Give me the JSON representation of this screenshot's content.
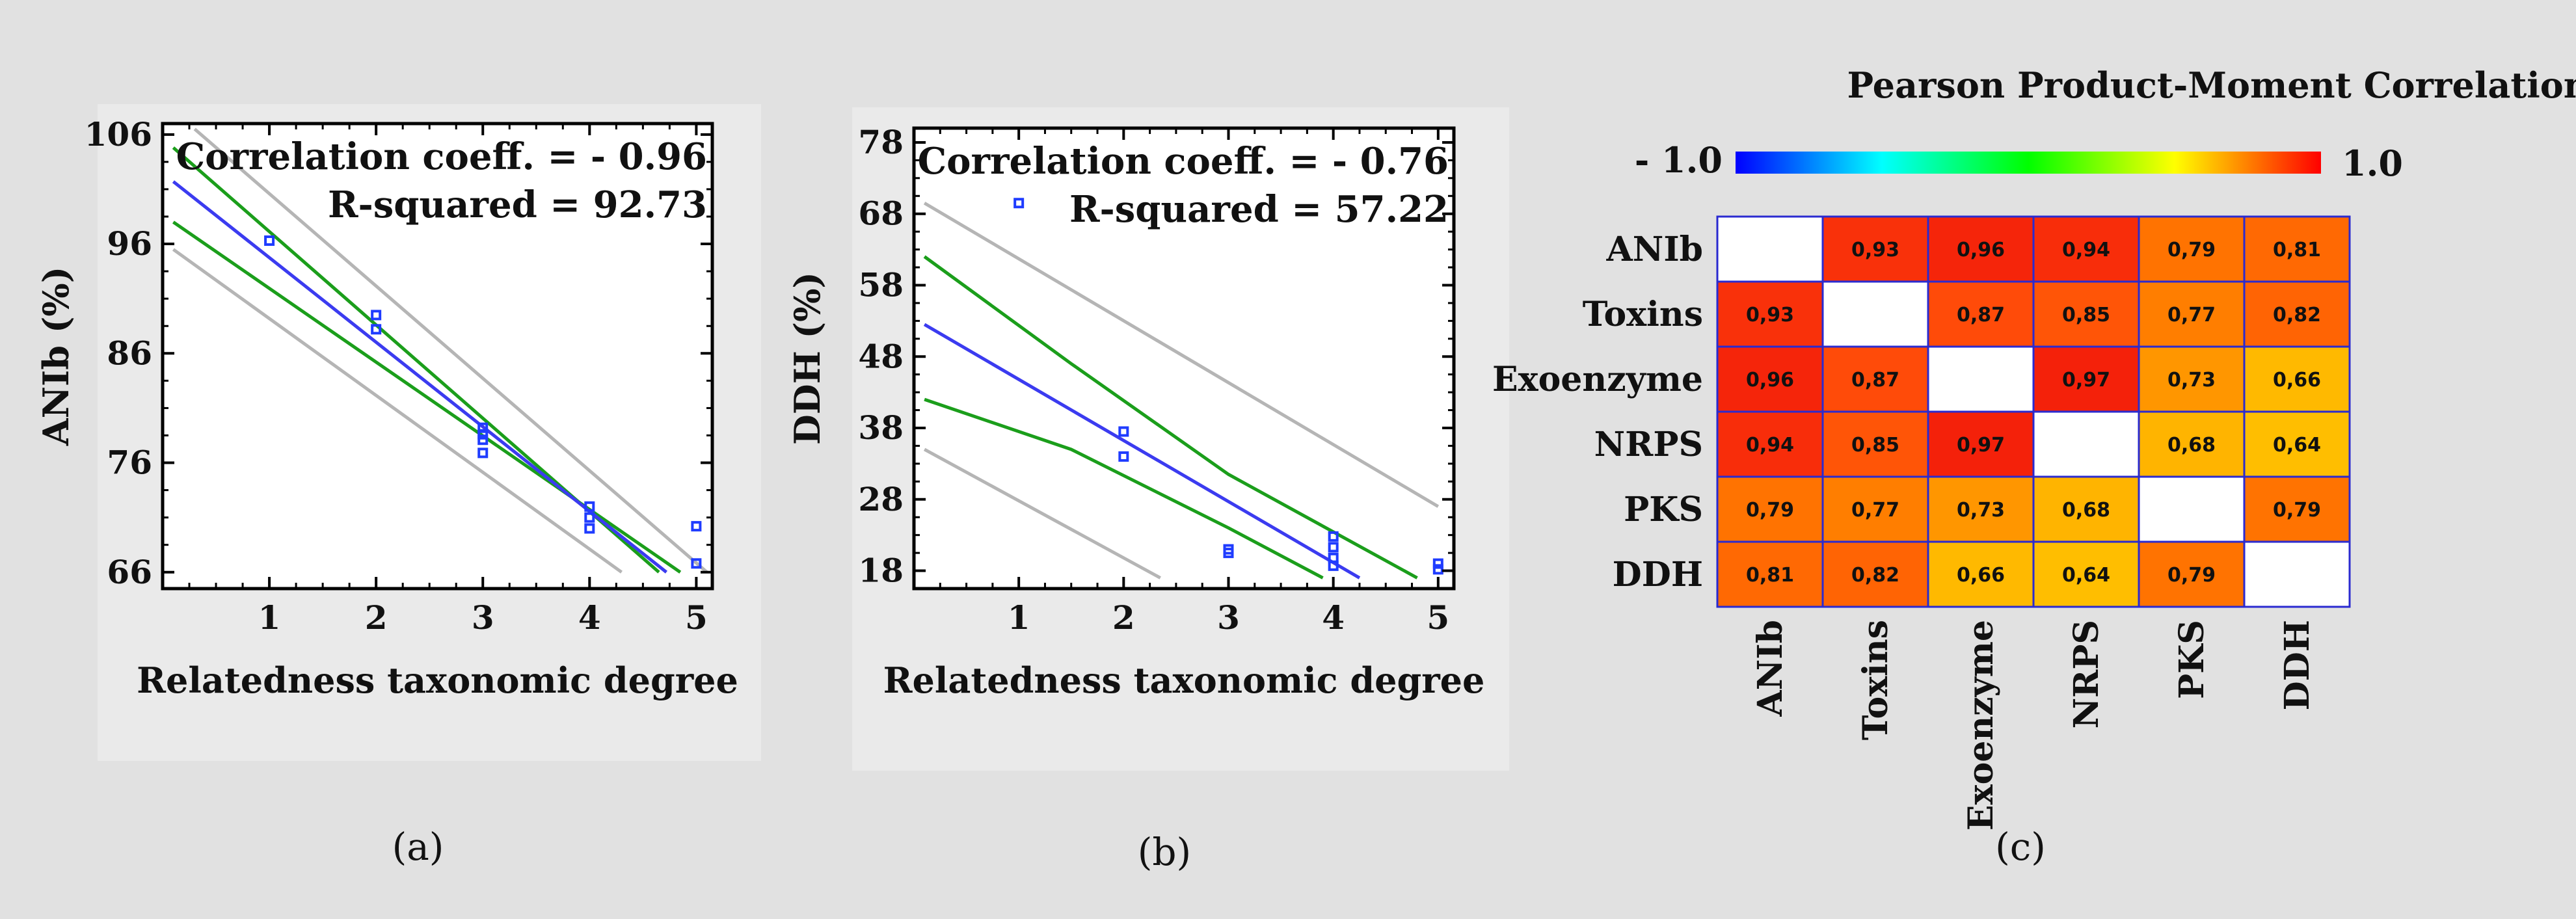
{
  "chart_data": [
    {
      "type": "scatter",
      "panel_label": "(a)",
      "xlabel": "Relatedness taxonomic degree",
      "ylabel": "ANIb (%)",
      "xticks": [
        1,
        2,
        3,
        4,
        5
      ],
      "yticks": [
        66,
        76,
        86,
        96,
        106
      ],
      "xlim": [
        0,
        5.15
      ],
      "ylim": [
        64.5,
        107
      ],
      "annotations": [
        "Correlation coeff. = - 0.96",
        "R-squared = 92.73"
      ],
      "points": [
        {
          "x": 1,
          "y": 96.3
        },
        {
          "x": 2,
          "y": 89.5
        },
        {
          "x": 2,
          "y": 88.2
        },
        {
          "x": 3,
          "y": 79.2
        },
        {
          "x": 3,
          "y": 78.6
        },
        {
          "x": 3,
          "y": 78.1
        },
        {
          "x": 3,
          "y": 76.9
        },
        {
          "x": 4,
          "y": 72.0
        },
        {
          "x": 4,
          "y": 71.0
        },
        {
          "x": 4,
          "y": 70.0
        },
        {
          "x": 5,
          "y": 70.2
        },
        {
          "x": 5,
          "y": 66.8
        }
      ],
      "fit": {
        "x": [
          0.1,
          4.72
        ],
        "y": [
          101.7,
          66.0
        ]
      },
      "confidence_lower": {
        "x": [
          0.1,
          4.85
        ],
        "y": [
          98.0,
          66.0
        ]
      },
      "confidence_upper": {
        "x": [
          0.1,
          4.65
        ],
        "y": [
          104.8,
          66.0
        ]
      },
      "prediction_lower": {
        "x": [
          0.1,
          4.3
        ],
        "y": [
          95.5,
          66.0
        ]
      },
      "prediction_upper": {
        "x": [
          0.3,
          5.1
        ],
        "y": [
          106.5,
          66.0
        ]
      },
      "colors": {
        "points": "#1f3cff",
        "fit": "#3b3bf0",
        "confidence": "#1b9e1b",
        "prediction": "#b5b5b5"
      }
    },
    {
      "type": "scatter",
      "panel_label": "(b)",
      "xlabel": "Relatedness taxonomic degree",
      "ylabel": "DDH (%)",
      "xticks": [
        1,
        2,
        3,
        4,
        5
      ],
      "yticks": [
        18,
        28,
        38,
        48,
        58,
        68,
        78
      ],
      "xlim": [
        0,
        5.15
      ],
      "ylim": [
        15.5,
        80
      ],
      "annotations": [
        "Correlation coeff. = - 0.76",
        "R-squared = 57.22"
      ],
      "points": [
        {
          "x": 1,
          "y": 69.5
        },
        {
          "x": 2,
          "y": 37.5
        },
        {
          "x": 2,
          "y": 34.0
        },
        {
          "x": 3,
          "y": 21.0
        },
        {
          "x": 3,
          "y": 20.5
        },
        {
          "x": 4,
          "y": 22.8
        },
        {
          "x": 4,
          "y": 21.3
        },
        {
          "x": 4,
          "y": 19.8
        },
        {
          "x": 4,
          "y": 18.7
        },
        {
          "x": 5,
          "y": 19.0
        },
        {
          "x": 5,
          "y": 18.2
        }
      ],
      "fit": {
        "x": [
          0.1,
          4.25
        ],
        "y": [
          52.5,
          17.0
        ]
      },
      "confidence_upper": {
        "x": [
          0.1,
          1.5,
          3.0,
          4.8
        ],
        "y": [
          62.0,
          47.0,
          31.5,
          17.0
        ]
      },
      "confidence_lower": {
        "x": [
          0.1,
          1.5,
          3.0,
          3.9
        ],
        "y": [
          42.0,
          35.0,
          24.0,
          17.0
        ]
      },
      "prediction_upper": {
        "x": [
          0.1,
          5.0
        ],
        "y": [
          69.5,
          27.0
        ]
      },
      "prediction_lower": {
        "x": [
          0.1,
          2.35
        ],
        "y": [
          35.0,
          17.0
        ]
      },
      "colors": {
        "points": "#1f3cff",
        "fit": "#3b3bf0",
        "confidence": "#1b9e1b",
        "prediction": "#b5b5b5"
      }
    },
    {
      "type": "heatmap",
      "panel_label": "(c)",
      "title": "Pearson Product-Moment Correlations",
      "colorbar": {
        "min_label": "- 1.0",
        "max_label": "1.0",
        "min": -1.0,
        "max": 1.0
      },
      "rows": [
        "ANIb",
        "Toxins",
        "Exoenzyme",
        "NRPS",
        "PKS",
        "DDH"
      ],
      "columns": [
        "ANIb",
        "Toxins",
        "Exoenzyme",
        "NRPS",
        "PKS",
        "DDH"
      ],
      "values": [
        [
          null,
          0.93,
          0.96,
          0.94,
          0.79,
          0.81
        ],
        [
          0.93,
          null,
          0.87,
          0.85,
          0.77,
          0.82
        ],
        [
          0.96,
          0.87,
          null,
          0.97,
          0.73,
          0.66
        ],
        [
          0.94,
          0.85,
          0.97,
          null,
          0.68,
          0.64
        ],
        [
          0.79,
          0.77,
          0.73,
          0.68,
          null,
          0.79
        ],
        [
          0.81,
          0.82,
          0.66,
          0.64,
          0.79,
          null
        ]
      ],
      "cell_labels": [
        [
          null,
          "0,93",
          "0,96",
          "0,94",
          "0,79",
          "0,81"
        ],
        [
          "0,93",
          null,
          "0,87",
          "0,85",
          "0,77",
          "0,82"
        ],
        [
          "0,96",
          "0,87",
          null,
          "0,97",
          "0,73",
          "0,66"
        ],
        [
          "0,94",
          "0,85",
          "0,97",
          null,
          "0,68",
          "0,64"
        ],
        [
          "0,79",
          "0,77",
          "0,73",
          "0,68",
          null,
          "0,79"
        ],
        [
          "0,81",
          "0,82",
          "0,66",
          "0,64",
          "0,79",
          null
        ]
      ],
      "colors": {
        "grid": "#2a2ad0"
      }
    }
  ]
}
